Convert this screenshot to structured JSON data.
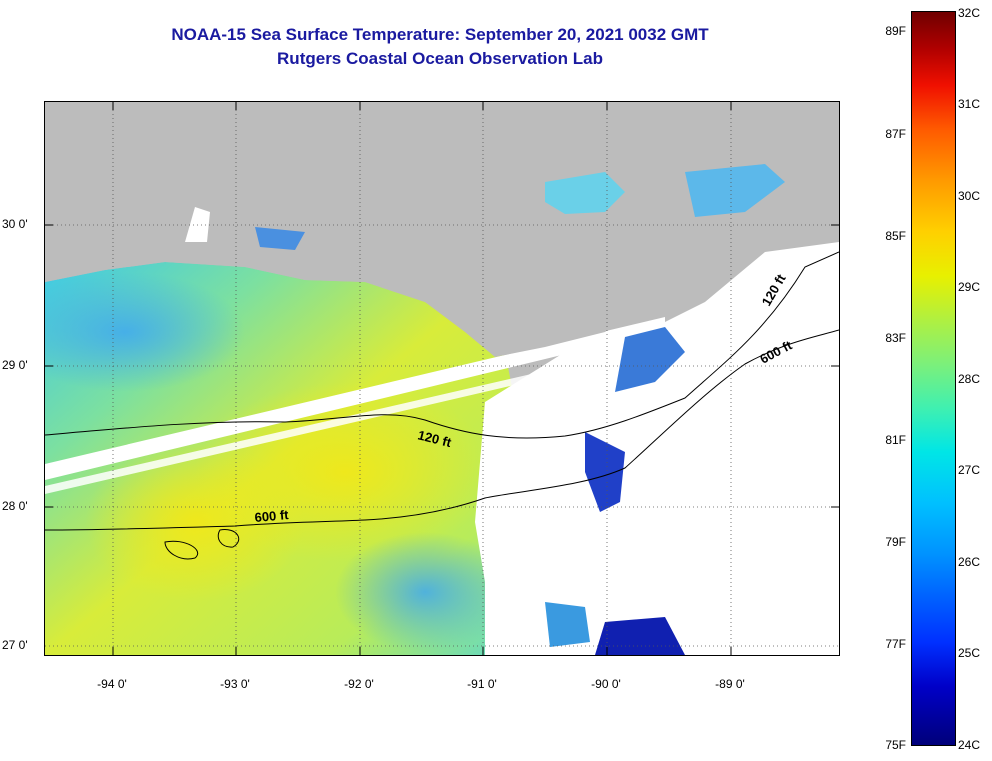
{
  "header": {
    "title_line1": "NOAA-15 Sea Surface Temperature:  September 20, 2021 0032 GMT",
    "title_line2": "Rutgers Coastal Ocean Observation Lab"
  },
  "map": {
    "lon_labels": [
      "-94 0'",
      "-93 0'",
      "-92 0'",
      "-91 0'",
      "-90 0'",
      "-89 0'"
    ],
    "lat_labels": [
      "30 0'",
      "29 0'",
      "28 0'",
      "27 0'"
    ],
    "contour_labels": [
      "120 ft",
      "600 ft",
      "120 ft",
      "600 ft"
    ],
    "colors": {
      "land": "#bcbcbc",
      "no_data": "#ffffff",
      "warm_water": "#e8f020",
      "mid_water": "#5ad8d0",
      "cool_water": "#1040d8"
    }
  },
  "colorbar": {
    "fahrenheit_labels": [
      "89F",
      "87F",
      "85F",
      "83F",
      "81F",
      "79F",
      "77F",
      "75F"
    ],
    "celsius_labels": [
      "32C",
      "31C",
      "30C",
      "29C",
      "28C",
      "27C",
      "26C",
      "25C",
      "24C"
    ]
  }
}
